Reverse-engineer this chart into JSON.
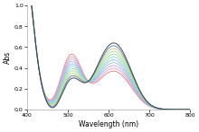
{
  "title": "",
  "xlabel": "Wavelength (nm)",
  "ylabel": "Abs",
  "xlim": [
    400,
    800
  ],
  "ylim": [
    0.0,
    1.0
  ],
  "xticks": [
    400,
    500,
    600,
    700,
    800
  ],
  "yticks": [
    0.0,
    0.2,
    0.4,
    0.6,
    0.8,
    1.0
  ],
  "background_color": "#ffffff",
  "num_spectra": 11,
  "colors": [
    "#e87878",
    "#e0a0c0",
    "#c0a0e0",
    "#a0b0e8",
    "#80c0e8",
    "#80d8c8",
    "#90d8a0",
    "#b0d890",
    "#c0c878",
    "#507890",
    "#203050"
  ]
}
